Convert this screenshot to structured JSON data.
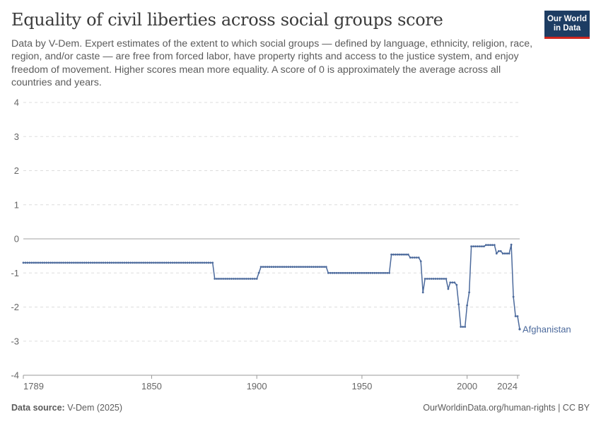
{
  "header": {
    "title": "Equality of civil liberties across social groups score",
    "subtitle": "Data by V-Dem. Expert estimates of the extent to which social groups — defined by language, ethnicity, religion, race, region, and/or caste — are free from forced labor, have property rights and access to the justice system, and enjoy freedom of movement. Higher scores mean more equality. A score of 0 is approximately the average across all countries and years."
  },
  "logo": {
    "line1": "Our World",
    "line2": "in Data"
  },
  "footer": {
    "source_label": "Data source:",
    "source_value": "V-Dem (2025)",
    "right": "OurWorldinData.org/human-rights | CC BY"
  },
  "colors": {
    "series": "#4c6a9c",
    "grid": "#dddddd",
    "zero": "#a1a1a1",
    "logo_bg": "#1d3d63",
    "logo_accent": "#ce261e"
  },
  "chart_data": {
    "type": "line",
    "xlim": [
      1789,
      2024
    ],
    "ylim": [
      -4,
      4
    ],
    "y_ticks": [
      4,
      3,
      2,
      1,
      0,
      -1,
      -2,
      -3,
      -4
    ],
    "y_tick_labels": [
      "4",
      "3",
      "2",
      "1",
      "0",
      "-1",
      "-2",
      "-3",
      "-4"
    ],
    "x_ticks": [
      1789,
      1850,
      1900,
      1950,
      2000,
      2024
    ],
    "x_tick_labels": [
      "1789",
      "1850",
      "1900",
      "1950",
      "2000",
      "2024"
    ],
    "grid": true,
    "series": [
      {
        "name": "Afghanistan",
        "points": [
          [
            1789,
            -0.7
          ],
          [
            1879,
            -0.7
          ],
          [
            1880,
            -1.17
          ],
          [
            1900,
            -1.17
          ],
          [
            1902,
            -0.82
          ],
          [
            1933,
            -0.82
          ],
          [
            1934,
            -1.0
          ],
          [
            1963,
            -1.0
          ],
          [
            1964,
            -0.46
          ],
          [
            1972,
            -0.46
          ],
          [
            1973,
            -0.55
          ],
          [
            1977,
            -0.55
          ],
          [
            1978,
            -0.66
          ],
          [
            1979,
            -1.57
          ],
          [
            1980,
            -1.17
          ],
          [
            1990,
            -1.17
          ],
          [
            1991,
            -1.47
          ],
          [
            1992,
            -1.28
          ],
          [
            1994,
            -1.28
          ],
          [
            1995,
            -1.35
          ],
          [
            1996,
            -1.92
          ],
          [
            1997,
            -2.58
          ],
          [
            1999,
            -2.58
          ],
          [
            2000,
            -1.95
          ],
          [
            2001,
            -1.57
          ],
          [
            2002,
            -0.22
          ],
          [
            2008,
            -0.22
          ],
          [
            2009,
            -0.18
          ],
          [
            2013,
            -0.18
          ],
          [
            2014,
            -0.43
          ],
          [
            2015,
            -0.36
          ],
          [
            2016,
            -0.36
          ],
          [
            2017,
            -0.43
          ],
          [
            2020,
            -0.43
          ],
          [
            2021,
            -0.17
          ],
          [
            2022,
            -1.7
          ],
          [
            2023,
            -2.27
          ],
          [
            2024,
            -2.27
          ],
          [
            2025,
            -2.65
          ]
        ]
      }
    ]
  }
}
